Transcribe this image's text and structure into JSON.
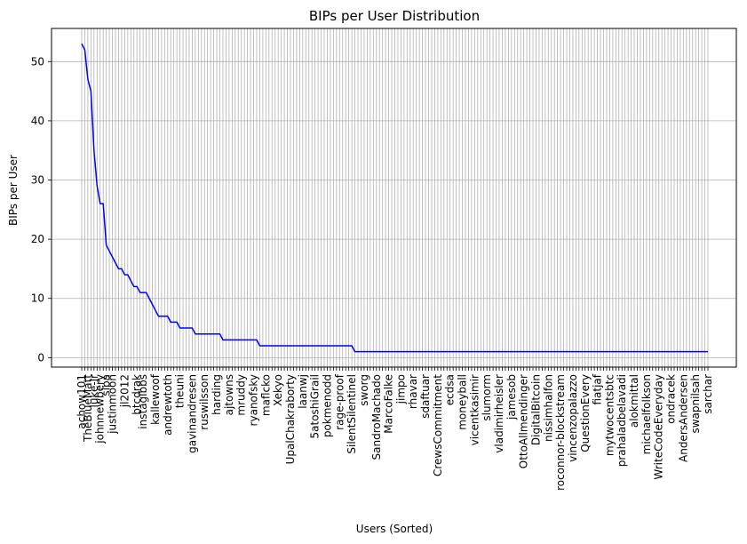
{
  "chart_data": {
    "type": "line",
    "title": "BIPs per User Distribution",
    "xlabel": "Users (Sorted)",
    "ylabel": "BIPs per User",
    "ylim": [
      -1.6,
      55.6
    ],
    "yticks": [
      0,
      10,
      20,
      30,
      40,
      50
    ],
    "grid": true,
    "line_color": "#0000ff",
    "user_count": 205,
    "visible_x_labels": [
      {
        "index": 0,
        "label": "achow101"
      },
      {
        "index": 2,
        "label": "TheBlueMatt"
      },
      {
        "index": 4,
        "label": "luke-jr"
      },
      {
        "index": 6,
        "label": "johnnewbery"
      },
      {
        "index": 8,
        "label": "sipa"
      },
      {
        "index": 10,
        "label": "justinmoon"
      },
      {
        "index": 14,
        "label": "jl2012"
      },
      {
        "index": 18,
        "label": "btcdrak"
      },
      {
        "index": 20,
        "label": "instagibbs"
      },
      {
        "index": 24,
        "label": "kallewoof"
      },
      {
        "index": 28,
        "label": "andrewtoth"
      },
      {
        "index": 32,
        "label": "theuni"
      },
      {
        "index": 36,
        "label": "gavinandresen"
      },
      {
        "index": 40,
        "label": "ruswilsson"
      },
      {
        "index": 44,
        "label": "harding"
      },
      {
        "index": 48,
        "label": "ajtowns"
      },
      {
        "index": 52,
        "label": "mruddy"
      },
      {
        "index": 56,
        "label": "ryanofsky"
      },
      {
        "index": 60,
        "label": "maflcko"
      },
      {
        "index": 64,
        "label": "Xekyo"
      },
      {
        "index": 68,
        "label": "UpalChakraborty"
      },
      {
        "index": 72,
        "label": "laanwj"
      },
      {
        "index": 76,
        "label": "5atoshiGrail"
      },
      {
        "index": 80,
        "label": "pokmenodd"
      },
      {
        "index": 84,
        "label": "rage-proof"
      },
      {
        "index": 88,
        "label": "SilentSilentinel"
      },
      {
        "index": 92,
        "label": "sworg"
      },
      {
        "index": 96,
        "label": "SandroMachado"
      },
      {
        "index": 100,
        "label": "MarcoFalke"
      },
      {
        "index": 104,
        "label": "jimpo"
      },
      {
        "index": 108,
        "label": "rhavar"
      },
      {
        "index": 112,
        "label": "sdaftuar"
      },
      {
        "index": 116,
        "label": "CrewsCommitment"
      },
      {
        "index": 120,
        "label": "ecdsa"
      },
      {
        "index": 124,
        "label": "moneyball"
      },
      {
        "index": 128,
        "label": "vicentkasimir"
      },
      {
        "index": 132,
        "label": "slumorm"
      },
      {
        "index": 136,
        "label": "vladimirheisler"
      },
      {
        "index": 140,
        "label": "jamesob"
      },
      {
        "index": 144,
        "label": "OttoAllmendinger"
      },
      {
        "index": 148,
        "label": "DigitalBitcoin"
      },
      {
        "index": 152,
        "label": "nissimhalfon"
      },
      {
        "index": 156,
        "label": "roconnor-blockstream"
      },
      {
        "index": 160,
        "label": "vincenzopalazzo"
      },
      {
        "index": 164,
        "label": "QuestionEvery"
      },
      {
        "index": 168,
        "label": "fiatjaf"
      },
      {
        "index": 172,
        "label": "mytwocentsbtc"
      },
      {
        "index": 176,
        "label": "prahaladbelavadi"
      },
      {
        "index": 180,
        "label": "alokmittal"
      },
      {
        "index": 184,
        "label": "michaelfolkson"
      },
      {
        "index": 188,
        "label": "WriteCodeEveryday"
      },
      {
        "index": 192,
        "label": "ondracek"
      },
      {
        "index": 196,
        "label": "AndersAndersen"
      },
      {
        "index": 200,
        "label": "swapnilsah"
      },
      {
        "index": 204,
        "label": "sarchar"
      }
    ],
    "series": [
      {
        "values_runs": [
          {
            "from": 0,
            "to": 0,
            "value": 53
          },
          {
            "from": 1,
            "to": 1,
            "value": 52
          },
          {
            "from": 2,
            "to": 2,
            "value": 47
          },
          {
            "from": 3,
            "to": 3,
            "value": 45
          },
          {
            "from": 4,
            "to": 4,
            "value": 35
          },
          {
            "from": 5,
            "to": 5,
            "value": 29
          },
          {
            "from": 6,
            "to": 6,
            "value": 26
          },
          {
            "from": 7,
            "to": 7,
            "value": 26
          },
          {
            "from": 8,
            "to": 8,
            "value": 19
          },
          {
            "from": 9,
            "to": 9,
            "value": 18
          },
          {
            "from": 10,
            "to": 10,
            "value": 17
          },
          {
            "from": 11,
            "to": 11,
            "value": 16
          },
          {
            "from": 12,
            "to": 13,
            "value": 15
          },
          {
            "from": 14,
            "to": 15,
            "value": 14
          },
          {
            "from": 16,
            "to": 16,
            "value": 13
          },
          {
            "from": 17,
            "to": 18,
            "value": 12
          },
          {
            "from": 19,
            "to": 21,
            "value": 11
          },
          {
            "from": 22,
            "to": 22,
            "value": 10
          },
          {
            "from": 23,
            "to": 23,
            "value": 9
          },
          {
            "from": 24,
            "to": 24,
            "value": 8
          },
          {
            "from": 25,
            "to": 28,
            "value": 7
          },
          {
            "from": 29,
            "to": 31,
            "value": 6
          },
          {
            "from": 32,
            "to": 36,
            "value": 5
          },
          {
            "from": 37,
            "to": 45,
            "value": 4
          },
          {
            "from": 46,
            "to": 57,
            "value": 3
          },
          {
            "from": 58,
            "to": 88,
            "value": 2
          },
          {
            "from": 89,
            "to": 204,
            "value": 1
          }
        ]
      }
    ]
  }
}
